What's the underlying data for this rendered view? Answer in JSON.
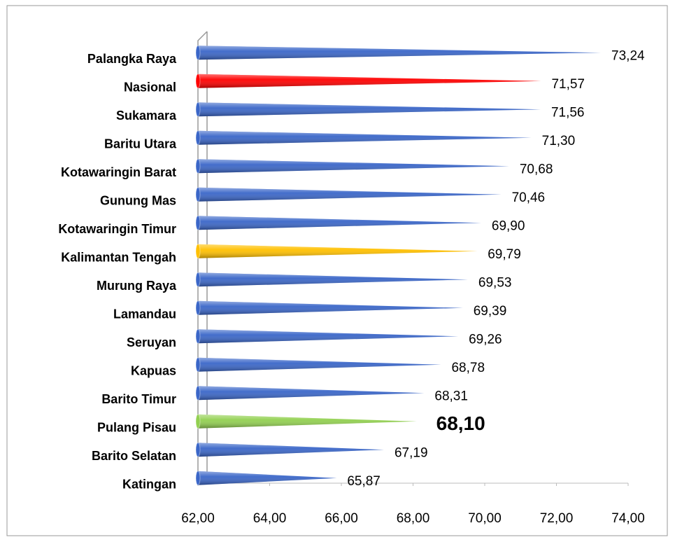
{
  "chart_data": {
    "type": "bar",
    "orientation": "horizontal",
    "categories": [
      "Palangka Raya",
      "Nasional",
      "Sukamara",
      "Baritu Utara",
      "Kotawaringin Barat",
      "Gunung Mas",
      "Kotawaringin Timur",
      "Kalimantan Tengah",
      "Murung Raya",
      "Lamandau",
      "Seruyan",
      "Kapuas",
      "Barito Timur",
      "Pulang Pisau",
      "Barito Selatan",
      "Katingan"
    ],
    "values": [
      73.24,
      71.57,
      71.56,
      71.3,
      70.68,
      70.46,
      69.9,
      69.79,
      69.53,
      69.39,
      69.26,
      68.78,
      68.31,
      68.1,
      67.19,
      65.87
    ],
    "value_labels": [
      "73,24",
      "71,57",
      "71,56",
      "71,30",
      "70,68",
      "70,46",
      "69,90",
      "69,79",
      "69,53",
      "69,39",
      "69,26",
      "68,78",
      "68,31",
      "68,10",
      "67,19",
      "65,87"
    ],
    "colors": [
      "#3a66c8",
      "#ff0000",
      "#3a66c8",
      "#3a66c8",
      "#3a66c8",
      "#3a66c8",
      "#3a66c8",
      "#ffc000",
      "#3a66c8",
      "#3a66c8",
      "#3a66c8",
      "#3a66c8",
      "#3a66c8",
      "#92d050",
      "#3a66c8",
      "#3a66c8"
    ],
    "xlim": [
      62,
      74
    ],
    "xticks": [
      {
        "value": 62,
        "label": "62,00"
      },
      {
        "value": 64,
        "label": "64,00"
      },
      {
        "value": 66,
        "label": "66,00"
      },
      {
        "value": 68,
        "label": "68,00"
      },
      {
        "value": 70,
        "label": "70,00"
      },
      {
        "value": 72,
        "label": "72,00"
      },
      {
        "value": 74,
        "label": "74,00"
      }
    ],
    "grid": false
  }
}
